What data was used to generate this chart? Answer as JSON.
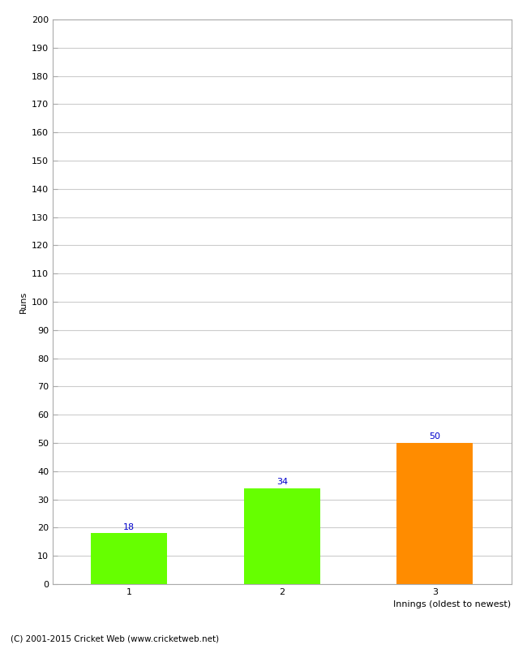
{
  "categories": [
    "1",
    "2",
    "3"
  ],
  "values": [
    18,
    34,
    50
  ],
  "bar_colors": [
    "#66ff00",
    "#66ff00",
    "#ff8c00"
  ],
  "ylabel": "Runs",
  "ylim": [
    0,
    200
  ],
  "ytick_step": 10,
  "value_label_color": "#0000cc",
  "value_label_fontsize": 8,
  "axis_label_fontsize": 8,
  "tick_fontsize": 8,
  "footer": "(C) 2001-2015 Cricket Web (www.cricketweb.net)",
  "background_color": "#ffffff",
  "grid_color": "#cccccc",
  "xlabel_text": "Innings (oldest to newest)"
}
